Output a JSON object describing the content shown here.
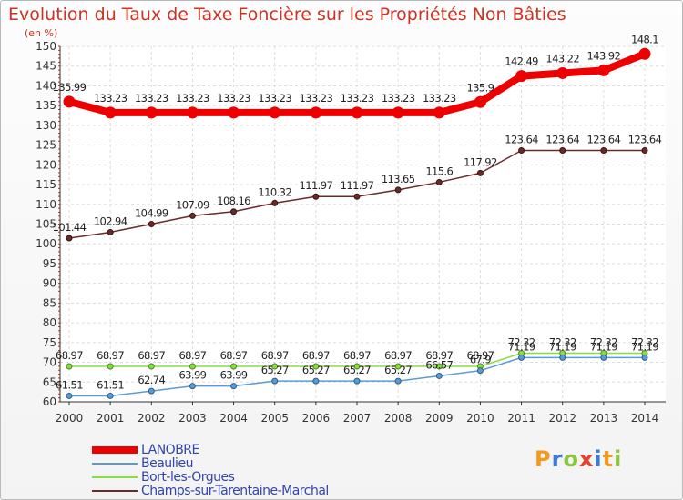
{
  "header": {
    "title": "Evolution du Taux de Taxe Foncière sur les Propriétés Non Bâties",
    "unit_label": "(en %)"
  },
  "chart_data": {
    "type": "line",
    "title": "Evolution du Taux de Taxe Foncière sur les Propriétés Non Bâties",
    "ylabel": "(en %)",
    "xlabel": "",
    "x": [
      "2000",
      "2001",
      "2002",
      "2003",
      "2004",
      "2005",
      "2006",
      "2007",
      "2008",
      "2009",
      "2010",
      "2011",
      "2012",
      "2013",
      "2014"
    ],
    "ylim": [
      60,
      150
    ],
    "yticks": [
      60,
      65,
      70,
      75,
      80,
      85,
      90,
      95,
      100,
      105,
      110,
      115,
      120,
      125,
      130,
      135,
      140,
      145,
      150
    ],
    "grid": true,
    "legend_position": "bottom-left",
    "series": [
      {
        "name": "LANOBRE",
        "color": "#ee0000",
        "values": [
          135.99,
          133.23,
          133.23,
          133.23,
          133.23,
          133.23,
          133.23,
          133.23,
          133.23,
          133.23,
          135.9,
          142.49,
          143.22,
          143.92,
          148.1
        ],
        "labels": [
          "135.99",
          "133.23",
          "133.23",
          "133.23",
          "133.23",
          "133.23",
          "133.23",
          "133.23",
          "133.23",
          "133.23",
          "135.9",
          "142.49",
          "143.22",
          "143.92",
          "148.1"
        ]
      },
      {
        "name": "Beaulieu",
        "color": "#5b9bd5",
        "values": [
          61.51,
          61.51,
          62.74,
          63.99,
          63.99,
          65.27,
          65.27,
          65.27,
          65.27,
          66.57,
          67.9,
          71.19,
          71.19,
          71.19,
          71.19
        ],
        "labels": [
          "61.51",
          "61.51",
          "62.74",
          "63.99",
          "63.99",
          "65.27",
          "65.27",
          "65.27",
          "65.27",
          "66.57",
          "67.9",
          "71.19",
          "71.19",
          "71.19",
          "71.19"
        ]
      },
      {
        "name": "Bort-les-Orgues",
        "color": "#88dd44",
        "values": [
          68.97,
          68.97,
          68.97,
          68.97,
          68.97,
          68.97,
          68.97,
          68.97,
          68.97,
          68.97,
          68.97,
          72.32,
          72.32,
          72.32,
          72.32
        ],
        "labels": [
          "68.97",
          "68.97",
          "68.97",
          "68.97",
          "68.97",
          "68.97",
          "68.97",
          "68.97",
          "68.97",
          "68.97",
          "68.97",
          "72.32",
          "72.32",
          "72.32",
          "72.32"
        ]
      },
      {
        "name": "Champs-sur-Tarentaine-Marchal",
        "color": "#6b2a2a",
        "values": [
          101.44,
          102.94,
          104.99,
          107.09,
          108.16,
          110.32,
          111.97,
          111.97,
          113.65,
          115.6,
          117.92,
          123.64,
          123.64,
          123.64,
          123.64
        ],
        "labels": [
          "101.44",
          "102.94",
          "104.99",
          "107.09",
          "108.16",
          "110.32",
          "111.97",
          "111.97",
          "113.65",
          "115.6",
          "117.92",
          "123.64",
          "123.64",
          "123.64",
          "123.64"
        ]
      }
    ]
  },
  "logo": {
    "text": "Proxiti"
  }
}
